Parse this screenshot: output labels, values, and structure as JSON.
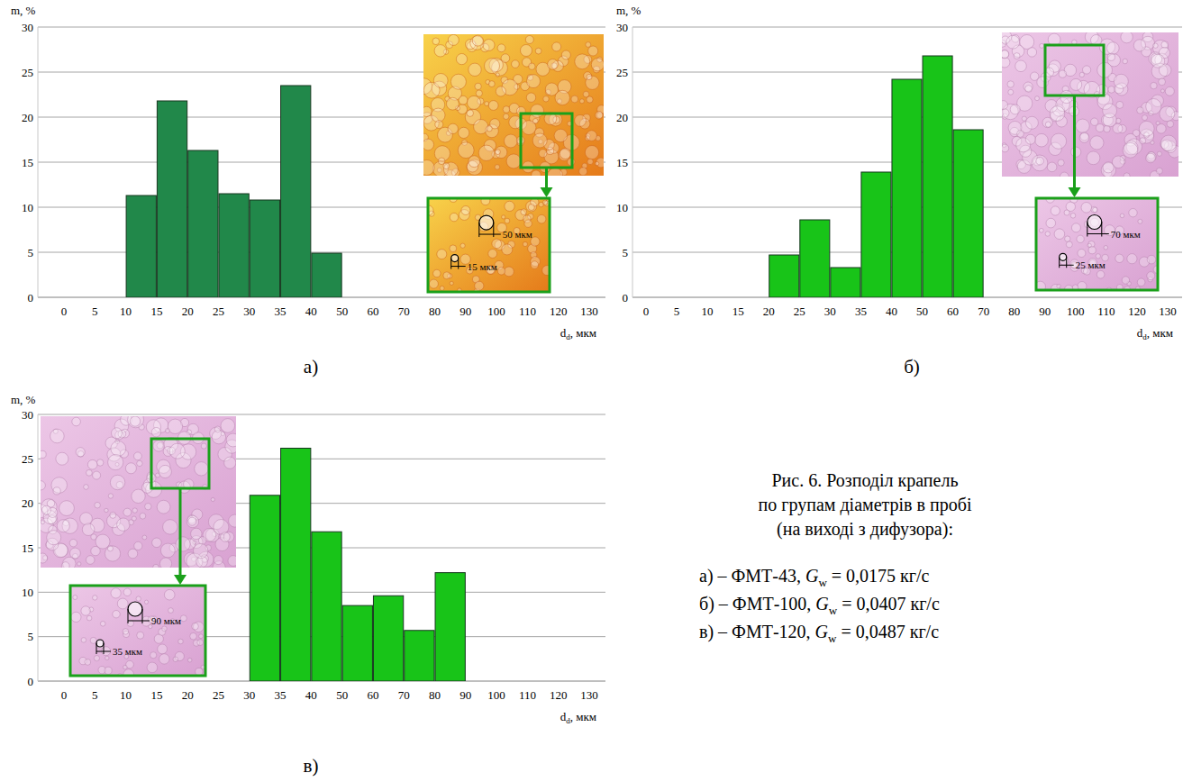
{
  "chart_data": [
    {
      "type": "bar",
      "label": "а)",
      "ylabel": "m, %",
      "xlabel": {
        "text": "d",
        "sub": "d",
        "tail": ", мкм"
      },
      "categories": [
        "0",
        "5",
        "10",
        "15",
        "20",
        "25",
        "30",
        "35",
        "40",
        "50",
        "60",
        "70",
        "80",
        "90",
        "100",
        "110",
        "120",
        "130"
      ],
      "values": [
        null,
        null,
        null,
        11.3,
        21.8,
        16.3,
        11.5,
        10.8,
        23.5,
        4.9,
        null,
        null,
        null,
        null,
        null,
        null,
        null,
        null
      ],
      "color": "#21884a",
      "ylim": [
        0,
        30
      ],
      "yticks": [
        0,
        5,
        10,
        15,
        20,
        25,
        30
      ],
      "grid": true,
      "inset_labels": [
        "50 мкм",
        "15 мкм"
      ]
    },
    {
      "type": "bar",
      "label": "б)",
      "ylabel": "m, %",
      "xlabel": {
        "text": "d",
        "sub": "d",
        "tail": ", мкм"
      },
      "categories": [
        "0",
        "5",
        "10",
        "15",
        "20",
        "25",
        "30",
        "35",
        "40",
        "50",
        "60",
        "70",
        "80",
        "90",
        "100",
        "110",
        "120",
        "130"
      ],
      "values": [
        null,
        null,
        null,
        null,
        null,
        4.7,
        8.6,
        3.3,
        13.9,
        24.2,
        26.8,
        18.6,
        null,
        null,
        null,
        null,
        null,
        null
      ],
      "color": "#18c418",
      "ylim": [
        0,
        30
      ],
      "yticks": [
        0,
        5,
        10,
        15,
        20,
        25,
        30
      ],
      "grid": true,
      "inset_labels": [
        "70 мкм",
        "25 мкм"
      ]
    },
    {
      "type": "bar",
      "label": "в)",
      "ylabel": "m, %",
      "xlabel": {
        "text": "d",
        "sub": "d",
        "tail": ", мкм"
      },
      "categories": [
        "0",
        "5",
        "10",
        "15",
        "20",
        "25",
        "30",
        "35",
        "40",
        "50",
        "60",
        "70",
        "80",
        "90",
        "100",
        "110",
        "120",
        "130"
      ],
      "values": [
        null,
        null,
        null,
        null,
        null,
        null,
        null,
        20.9,
        26.2,
        16.8,
        8.5,
        9.6,
        5.7,
        12.2,
        null,
        null,
        null,
        null
      ],
      "color": "#18c418",
      "ylim": [
        0,
        30
      ],
      "yticks": [
        0,
        5,
        10,
        15,
        20,
        25,
        30
      ],
      "grid": true,
      "inset_labels": [
        "90 мкм",
        "35 мкм"
      ]
    }
  ],
  "caption": {
    "lines": [
      "Рис. 6. Розподіл крапель",
      "по групам діаметрів в пробі",
      "(на виході з дифузора):"
    ],
    "items": [
      {
        "prefix": "а) – ФМТ-43, ",
        "var": "G",
        "sub": "w",
        "suffix": " = 0,0175 кг/с"
      },
      {
        "prefix": "б) – ФМТ-100, ",
        "var": "G",
        "sub": "w",
        "suffix": " = 0,0407 кг/с"
      },
      {
        "prefix": "в) – ФМТ-120, ",
        "var": "G",
        "sub": "w",
        "suffix": " = 0,0487 кг/с"
      }
    ]
  }
}
